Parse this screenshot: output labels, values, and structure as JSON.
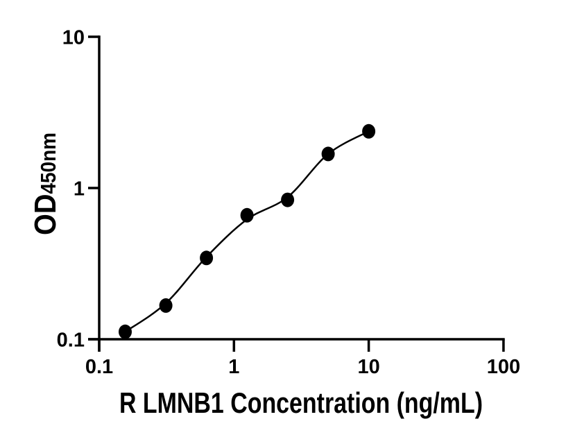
{
  "chart_data": {
    "type": "scatter",
    "title": "",
    "xlabel": "R LMNB1 Concentration (ng/mL)",
    "ylabel": "OD",
    "ylabel_subscript": "450nm",
    "x_scale": "log",
    "y_scale": "log",
    "xlim": [
      0.1,
      100
    ],
    "ylim": [
      0.1,
      10
    ],
    "x_ticks": [
      0.1,
      1,
      10,
      100
    ],
    "x_tick_labels": [
      "0.1",
      "1",
      "10",
      "100"
    ],
    "y_ticks": [
      0.1,
      1,
      10
    ],
    "y_tick_labels": [
      "0.1",
      "1",
      "10"
    ],
    "grid": false,
    "legend": false,
    "colors": {
      "axis": "#000000",
      "marker": "#000000",
      "fit_line": "#000000",
      "background": "#ffffff"
    },
    "series": [
      {
        "name": "standard-points",
        "type": "scatter",
        "x": [
          0.156,
          0.3125,
          0.625,
          1.25,
          2.5,
          5,
          10
        ],
        "y": [
          0.112,
          0.167,
          0.345,
          0.66,
          0.835,
          1.68,
          2.37
        ]
      },
      {
        "name": "fit-curve",
        "type": "line",
        "x": [
          0.156,
          0.3125,
          0.625,
          1.25,
          2.5,
          5,
          10
        ],
        "y": [
          0.112,
          0.173,
          0.35,
          0.62,
          0.87,
          1.68,
          2.37
        ]
      }
    ]
  }
}
